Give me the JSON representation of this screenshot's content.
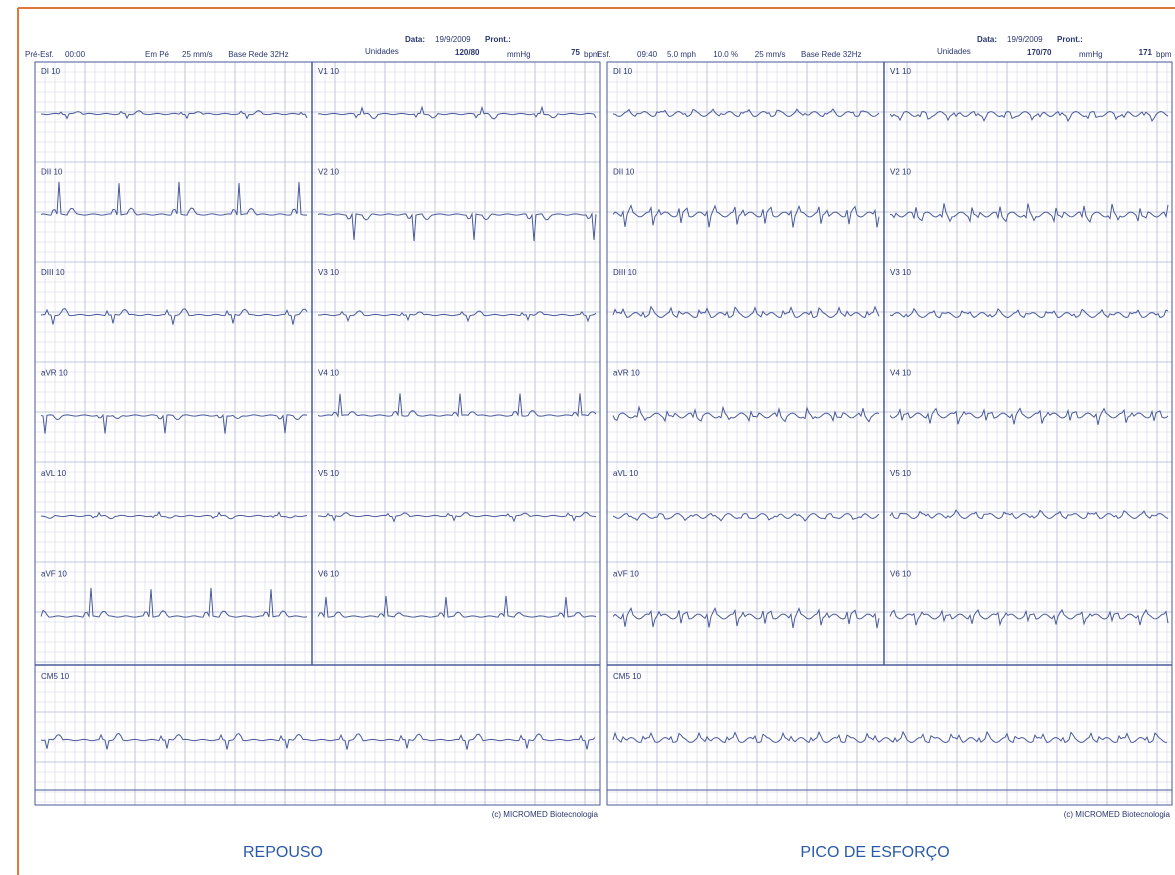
{
  "panels": [
    {
      "date_label": "Data:",
      "date": "19/9/2009",
      "record_label": "Pront.:",
      "stage": "Pré-Esf.",
      "time": "00:00",
      "fields": [
        "Em Pé",
        "25 mm/s",
        "Base Rede 32Hz"
      ],
      "units_label": "Unidades",
      "pressure": "120/80",
      "pressure_unit": "mmHg",
      "heart_rate": 75,
      "heart_rate_unit": "bpm",
      "leads_left": [
        "DI 10",
        "DII 10",
        "DIII 10",
        "aVR 10",
        "aVL 10",
        "aVF 10"
      ],
      "leads_right": [
        "V1 10",
        "V2 10",
        "V3 10",
        "V4 10",
        "V5 10",
        "V6 10"
      ],
      "rhythm_lead": "CM5 10",
      "footer": "(c) MICROMED Biotecnologia",
      "caption": "REPOUSO"
    },
    {
      "date_label": "Data:",
      "date": "19/9/2009",
      "record_label": "Pront.:",
      "stage": "Esf.",
      "time": "09:40",
      "fields": [
        "5.0 mph",
        "10.0 %",
        "25 mm/s",
        "Base Rede 32Hz"
      ],
      "units_label": "Unidades",
      "pressure": "170/70",
      "pressure_unit": "mmHg",
      "heart_rate": 171,
      "heart_rate_unit": "bpm",
      "leads_left": [
        "DI 10",
        "DII 10",
        "DIII 10",
        "aVR 10",
        "aVL 10",
        "aVF 10"
      ],
      "leads_right": [
        "V1 10",
        "V2 10",
        "V3 10",
        "V4 10",
        "V5 10",
        "V6 10"
      ],
      "rhythm_lead": "CM5 10",
      "footer": "(c) MICROMED Biotecnologia",
      "caption": "PICO DE ESFORÇO"
    }
  ]
}
